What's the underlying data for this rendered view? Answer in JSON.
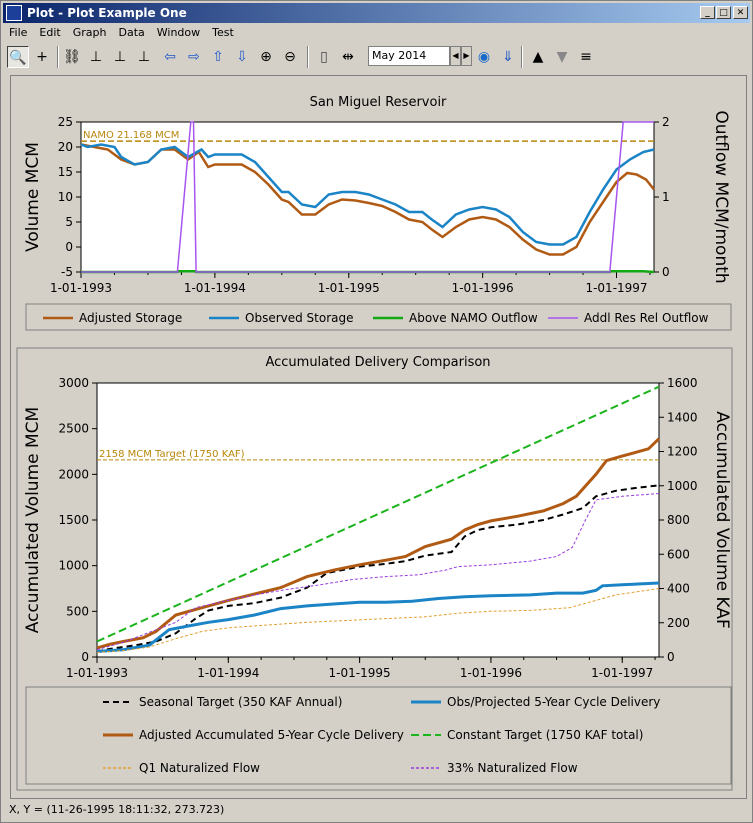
{
  "window": {
    "title": "Plot - Plot Example One"
  },
  "menu": [
    "File",
    "Edit",
    "Graph",
    "Data",
    "Window",
    "Test"
  ],
  "toolbar": {
    "date_value": "May 2014"
  },
  "status": "X, Y = (11-26-1995 18:11:32, 273.723)",
  "colors": {
    "adjusted": "#b05a14",
    "observed": "#1a84c6",
    "above": "#14a814",
    "addl": "#a855f0",
    "black": "#000000",
    "green": "#1cb41c",
    "q1": "#e0a030",
    "nat33": "#9a3ce0",
    "ref": "#b8860b"
  },
  "chart_data": [
    {
      "type": "line",
      "title": "San Miguel Reservoir",
      "xlabel": "",
      "ylabel": "Volume MCM",
      "y2label": "Outflow MCM/month",
      "ylim": [
        -5,
        25
      ],
      "y2lim": [
        0,
        2
      ],
      "x_ticks": [
        "1-01-1993",
        "1-01-1994",
        "1-01-1995",
        "1-01-1996",
        "1-01-1997"
      ],
      "y_ticks": [
        -5,
        0,
        5,
        10,
        15,
        20,
        25
      ],
      "y2_ticks": [
        0,
        1,
        2
      ],
      "reference_line": {
        "label": "NAMO 21.168 MCM",
        "value": 21.168
      },
      "grid": false,
      "legend": "bottom",
      "series": [
        {
          "name": "Adjusted Storage",
          "axis": "left",
          "values": [
            [
              1993.0,
              20.5
            ],
            [
              1993.1,
              20.0
            ],
            [
              1993.2,
              19.5
            ],
            [
              1993.3,
              17.5
            ],
            [
              1993.4,
              16.5
            ],
            [
              1993.5,
              17.0
            ],
            [
              1993.6,
              19.5
            ],
            [
              1993.7,
              19.5
            ],
            [
              1993.8,
              17.5
            ],
            [
              1993.88,
              19.0
            ],
            [
              1993.95,
              16.0
            ],
            [
              1994.0,
              16.5
            ],
            [
              1994.1,
              16.5
            ],
            [
              1994.2,
              16.5
            ],
            [
              1994.3,
              15.0
            ],
            [
              1994.4,
              12.5
            ],
            [
              1994.5,
              9.5
            ],
            [
              1994.55,
              9.0
            ],
            [
              1994.65,
              6.5
            ],
            [
              1994.75,
              6.5
            ],
            [
              1994.85,
              8.5
            ],
            [
              1994.95,
              9.5
            ],
            [
              1995.05,
              9.3
            ],
            [
              1995.15,
              8.8
            ],
            [
              1995.25,
              8.2
            ],
            [
              1995.35,
              7.0
            ],
            [
              1995.45,
              5.5
            ],
            [
              1995.55,
              5.0
            ],
            [
              1995.62,
              3.5
            ],
            [
              1995.7,
              2.0
            ],
            [
              1995.8,
              4.0
            ],
            [
              1995.9,
              5.5
            ],
            [
              1996.0,
              6.0
            ],
            [
              1996.1,
              5.5
            ],
            [
              1996.2,
              4.0
            ],
            [
              1996.3,
              1.5
            ],
            [
              1996.4,
              -0.5
            ],
            [
              1996.5,
              -1.5
            ],
            [
              1996.6,
              -1.5
            ],
            [
              1996.7,
              0.0
            ],
            [
              1996.8,
              5.0
            ],
            [
              1996.9,
              9.0
            ],
            [
              1997.0,
              13.0
            ],
            [
              1997.08,
              14.8
            ],
            [
              1997.15,
              14.5
            ],
            [
              1997.22,
              13.5
            ],
            [
              1997.28,
              11.5
            ]
          ]
        },
        {
          "name": "Observed Storage",
          "axis": "left",
          "values": [
            [
              1993.0,
              20.5
            ],
            [
              1993.05,
              20.0
            ],
            [
              1993.15,
              20.5
            ],
            [
              1993.25,
              20.0
            ],
            [
              1993.3,
              18.0
            ],
            [
              1993.4,
              16.5
            ],
            [
              1993.5,
              17.0
            ],
            [
              1993.6,
              19.5
            ],
            [
              1993.7,
              20.0
            ],
            [
              1993.8,
              18.0
            ],
            [
              1993.9,
              19.5
            ],
            [
              1993.95,
              18.0
            ],
            [
              1994.0,
              18.5
            ],
            [
              1994.1,
              18.5
            ],
            [
              1994.2,
              18.5
            ],
            [
              1994.3,
              17.0
            ],
            [
              1994.4,
              14.0
            ],
            [
              1994.5,
              11.0
            ],
            [
              1994.55,
              11.0
            ],
            [
              1994.65,
              8.5
            ],
            [
              1994.75,
              8.0
            ],
            [
              1994.85,
              10.5
            ],
            [
              1994.95,
              11.0
            ],
            [
              1995.05,
              11.0
            ],
            [
              1995.15,
              10.5
            ],
            [
              1995.25,
              9.5
            ],
            [
              1995.35,
              8.5
            ],
            [
              1995.45,
              7.0
            ],
            [
              1995.55,
              7.0
            ],
            [
              1995.62,
              5.5
            ],
            [
              1995.7,
              4.0
            ],
            [
              1995.8,
              6.5
            ],
            [
              1995.9,
              7.5
            ],
            [
              1996.0,
              8.0
            ],
            [
              1996.1,
              7.5
            ],
            [
              1996.2,
              6.0
            ],
            [
              1996.3,
              3.0
            ],
            [
              1996.4,
              1.0
            ],
            [
              1996.5,
              0.5
            ],
            [
              1996.6,
              0.5
            ],
            [
              1996.7,
              2.0
            ],
            [
              1996.8,
              7.0
            ],
            [
              1996.9,
              11.5
            ],
            [
              1997.0,
              15.5
            ],
            [
              1997.1,
              17.5
            ],
            [
              1997.2,
              19.0
            ],
            [
              1997.28,
              19.5
            ]
          ]
        },
        {
          "name": "Above NAMO Outflow",
          "axis": "right",
          "values": [
            [
              1993.0,
              0
            ],
            [
              1993.72,
              0
            ],
            [
              1993.73,
              0.01
            ],
            [
              1993.85,
              0.01
            ],
            [
              1993.86,
              0
            ],
            [
              1996.95,
              0
            ],
            [
              1996.96,
              0.01
            ],
            [
              1997.2,
              0.01
            ],
            [
              1997.28,
              0
            ]
          ]
        },
        {
          "name": "Addl Res Rel Outflow",
          "axis": "right",
          "values": [
            [
              1993.0,
              0
            ],
            [
              1993.72,
              0
            ],
            [
              1993.82,
              2.0
            ],
            [
              1993.84,
              2.0
            ],
            [
              1993.86,
              0
            ],
            [
              1996.95,
              0
            ],
            [
              1997.05,
              2.0
            ],
            [
              1997.28,
              2.0
            ]
          ]
        }
      ]
    },
    {
      "type": "line",
      "title": "Accumulated Delivery Comparison",
      "xlabel": "",
      "ylabel": "Accumulated Volume MCM",
      "y2label": "Accumulated Volume KAF",
      "ylim": [
        0,
        3000
      ],
      "y2lim": [
        0,
        1600
      ],
      "x_ticks": [
        "1-01-1993",
        "1-01-1994",
        "1-01-1995",
        "1-01-1996",
        "1-01-1997"
      ],
      "y_ticks": [
        0,
        500,
        1000,
        1500,
        2000,
        2500,
        3000
      ],
      "y2_ticks": [
        0,
        200,
        400,
        600,
        800,
        1000,
        1200,
        1400,
        1600
      ],
      "reference_line": {
        "label": "2158 MCM Target (1750 KAF)",
        "value": 2158
      },
      "grid": false,
      "legend": "bottom",
      "series": [
        {
          "name": "Seasonal Target (350 KAF Annual)",
          "values": [
            [
              1993.0,
              60
            ],
            [
              1993.1,
              90
            ],
            [
              1993.2,
              110
            ],
            [
              1993.3,
              130
            ],
            [
              1993.45,
              170
            ],
            [
              1993.6,
              260
            ],
            [
              1993.75,
              420
            ],
            [
              1993.85,
              510
            ],
            [
              1994.0,
              560
            ],
            [
              1994.2,
              590
            ],
            [
              1994.4,
              650
            ],
            [
              1994.6,
              760
            ],
            [
              1994.75,
              920
            ],
            [
              1994.9,
              960
            ],
            [
              1995.0,
              990
            ],
            [
              1995.2,
              1020
            ],
            [
              1995.35,
              1050
            ],
            [
              1995.5,
              1110
            ],
            [
              1995.7,
              1150
            ],
            [
              1995.8,
              1320
            ],
            [
              1995.9,
              1390
            ],
            [
              1996.0,
              1420
            ],
            [
              1996.2,
              1450
            ],
            [
              1996.4,
              1500
            ],
            [
              1996.55,
              1560
            ],
            [
              1996.7,
              1630
            ],
            [
              1996.8,
              1760
            ],
            [
              1996.95,
              1820
            ],
            [
              1997.1,
              1850
            ],
            [
              1997.28,
              1880
            ]
          ]
        },
        {
          "name": "Obs/Projected 5-Year Cycle Delivery",
          "values": [
            [
              1993.0,
              60
            ],
            [
              1993.2,
              80
            ],
            [
              1993.4,
              130
            ],
            [
              1993.55,
              300
            ],
            [
              1993.7,
              340
            ],
            [
              1993.85,
              380
            ],
            [
              1994.0,
              410
            ],
            [
              1994.2,
              460
            ],
            [
              1994.4,
              530
            ],
            [
              1994.6,
              560
            ],
            [
              1994.8,
              580
            ],
            [
              1995.0,
              600
            ],
            [
              1995.2,
              600
            ],
            [
              1995.4,
              610
            ],
            [
              1995.6,
              640
            ],
            [
              1995.8,
              660
            ],
            [
              1996.0,
              670
            ],
            [
              1996.3,
              680
            ],
            [
              1996.5,
              700
            ],
            [
              1996.7,
              700
            ],
            [
              1996.8,
              730
            ],
            [
              1996.85,
              780
            ],
            [
              1997.0,
              790
            ],
            [
              1997.28,
              810
            ]
          ]
        },
        {
          "name": "Adjusted Accumulated 5-Year Cycle Delivery",
          "values": [
            [
              1993.0,
              100
            ],
            [
              1993.1,
              140
            ],
            [
              1993.2,
              170
            ],
            [
              1993.35,
              210
            ],
            [
              1993.45,
              280
            ],
            [
              1993.6,
              460
            ],
            [
              1993.8,
              540
            ],
            [
              1994.0,
              620
            ],
            [
              1994.2,
              690
            ],
            [
              1994.4,
              760
            ],
            [
              1994.6,
              880
            ],
            [
              1994.8,
              950
            ],
            [
              1995.0,
              1010
            ],
            [
              1995.2,
              1060
            ],
            [
              1995.35,
              1100
            ],
            [
              1995.5,
              1210
            ],
            [
              1995.7,
              1290
            ],
            [
              1995.8,
              1390
            ],
            [
              1995.9,
              1450
            ],
            [
              1996.0,
              1490
            ],
            [
              1996.2,
              1540
            ],
            [
              1996.4,
              1600
            ],
            [
              1996.55,
              1680
            ],
            [
              1996.65,
              1760
            ],
            [
              1996.8,
              2000
            ],
            [
              1996.88,
              2150
            ],
            [
              1997.0,
              2200
            ],
            [
              1997.2,
              2280
            ],
            [
              1997.28,
              2390
            ]
          ]
        },
        {
          "name": "Constant Target (1750 KAF total)",
          "values": [
            [
              1993.0,
              170
            ],
            [
              1997.28,
              2960
            ]
          ]
        },
        {
          "name": "Q1 Naturalized Flow",
          "values": [
            [
              1993.0,
              50
            ],
            [
              1993.2,
              70
            ],
            [
              1993.4,
              110
            ],
            [
              1993.6,
              200
            ],
            [
              1993.8,
              280
            ],
            [
              1994.0,
              320
            ],
            [
              1994.3,
              350
            ],
            [
              1994.6,
              380
            ],
            [
              1994.9,
              400
            ],
            [
              1995.2,
              420
            ],
            [
              1995.5,
              440
            ],
            [
              1995.75,
              480
            ],
            [
              1996.0,
              500
            ],
            [
              1996.3,
              510
            ],
            [
              1996.6,
              540
            ],
            [
              1996.8,
              620
            ],
            [
              1996.95,
              680
            ],
            [
              1997.28,
              750
            ]
          ]
        },
        {
          "name": "33% Naturalized Flow",
          "values": [
            [
              1993.0,
              80
            ],
            [
              1993.2,
              160
            ],
            [
              1993.4,
              270
            ],
            [
              1993.6,
              380
            ],
            [
              1993.75,
              540
            ],
            [
              1994.0,
              620
            ],
            [
              1994.2,
              680
            ],
            [
              1994.45,
              740
            ],
            [
              1994.7,
              790
            ],
            [
              1994.95,
              850
            ],
            [
              1995.2,
              880
            ],
            [
              1995.45,
              900
            ],
            [
              1995.65,
              950
            ],
            [
              1995.75,
              990
            ],
            [
              1996.0,
              1010
            ],
            [
              1996.3,
              1050
            ],
            [
              1996.5,
              1100
            ],
            [
              1996.62,
              1200
            ],
            [
              1996.72,
              1500
            ],
            [
              1996.8,
              1720
            ],
            [
              1997.0,
              1760
            ],
            [
              1997.28,
              1790
            ]
          ]
        }
      ]
    }
  ]
}
